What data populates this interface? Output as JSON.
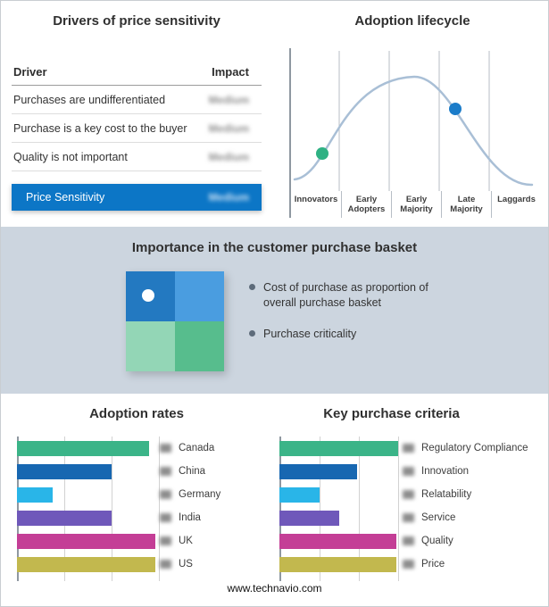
{
  "drivers": {
    "title": "Drivers of price sensitivity",
    "header_driver": "Driver",
    "header_impact": "Impact",
    "impacts_redacted": true,
    "rows": [
      {
        "driver": "Purchases are undifferentiated",
        "impact": "Medium"
      },
      {
        "driver": "Purchase is a key cost to the buyer",
        "impact": "Medium"
      },
      {
        "driver": "Quality is not important",
        "impact": "Medium"
      }
    ],
    "highlight": {
      "driver": "Price Sensitivity",
      "impact": "Medium"
    }
  },
  "lifecycle": {
    "title": "Adoption lifecycle",
    "stages": [
      "Innovators",
      "Early Adopters",
      "Early Majority",
      "Late Majority",
      "Laggards"
    ],
    "curve_color": "#a9bfd6",
    "markers": [
      {
        "name": "innovators-marker",
        "stage": "Innovators / Early Adopters boundary",
        "color": "#2fb183"
      },
      {
        "name": "late-majority-marker",
        "stage": "Late Majority",
        "color": "#1b7cc9"
      }
    ]
  },
  "basket": {
    "title": "Importance in the customer purchase basket",
    "bullets": [
      "Cost of purchase as proportion of overall purchase basket",
      "Purchase criticality"
    ],
    "matrix": {
      "top_left": "#2379c1",
      "top_right": "#4a9de0",
      "bottom_left": "#93d6b6",
      "bottom_right": "#57bd8d"
    }
  },
  "footer": {
    "url": "www.technavio.com"
  },
  "chart_data": [
    {
      "type": "line",
      "title": "Adoption lifecycle",
      "shape": "bell curve",
      "categories": [
        "Innovators",
        "Early Adopters",
        "Early Majority",
        "Late Majority",
        "Laggards"
      ],
      "markers": [
        {
          "stage": "Innovators / Early Adopters boundary",
          "position": "rising slope",
          "color": "#2fb183"
        },
        {
          "stage": "Late Majority",
          "position": "falling slope",
          "color": "#1b7cc9"
        }
      ],
      "grid": "vertical stage separators",
      "legend_position": "none"
    },
    {
      "type": "bar",
      "orientation": "horizontal",
      "title": "Adoption rates",
      "categories": [
        "Canada",
        "China",
        "Germany",
        "India",
        "UK",
        "US"
      ],
      "values": [
        85,
        61,
        23,
        61,
        89,
        89
      ],
      "xlim": [
        0,
        92
      ],
      "values_redacted": true,
      "colors": [
        "#3bb488",
        "#1767b1",
        "#29b5e8",
        "#6f58ba",
        "#c43e96",
        "#c2b84e"
      ],
      "legend_position": "right"
    },
    {
      "type": "bar",
      "orientation": "horizontal",
      "title": "Key purchase criteria",
      "categories": [
        "Regulatory Compliance",
        "Innovation",
        "Relatability",
        "Service",
        "Quality",
        "Price"
      ],
      "values": [
        91,
        60,
        31,
        46,
        90,
        90
      ],
      "xlim": [
        0,
        92
      ],
      "values_redacted": true,
      "colors": [
        "#3bb488",
        "#1767b1",
        "#29b5e8",
        "#6f58ba",
        "#c43e96",
        "#c2b84e"
      ],
      "legend_position": "right"
    }
  ]
}
